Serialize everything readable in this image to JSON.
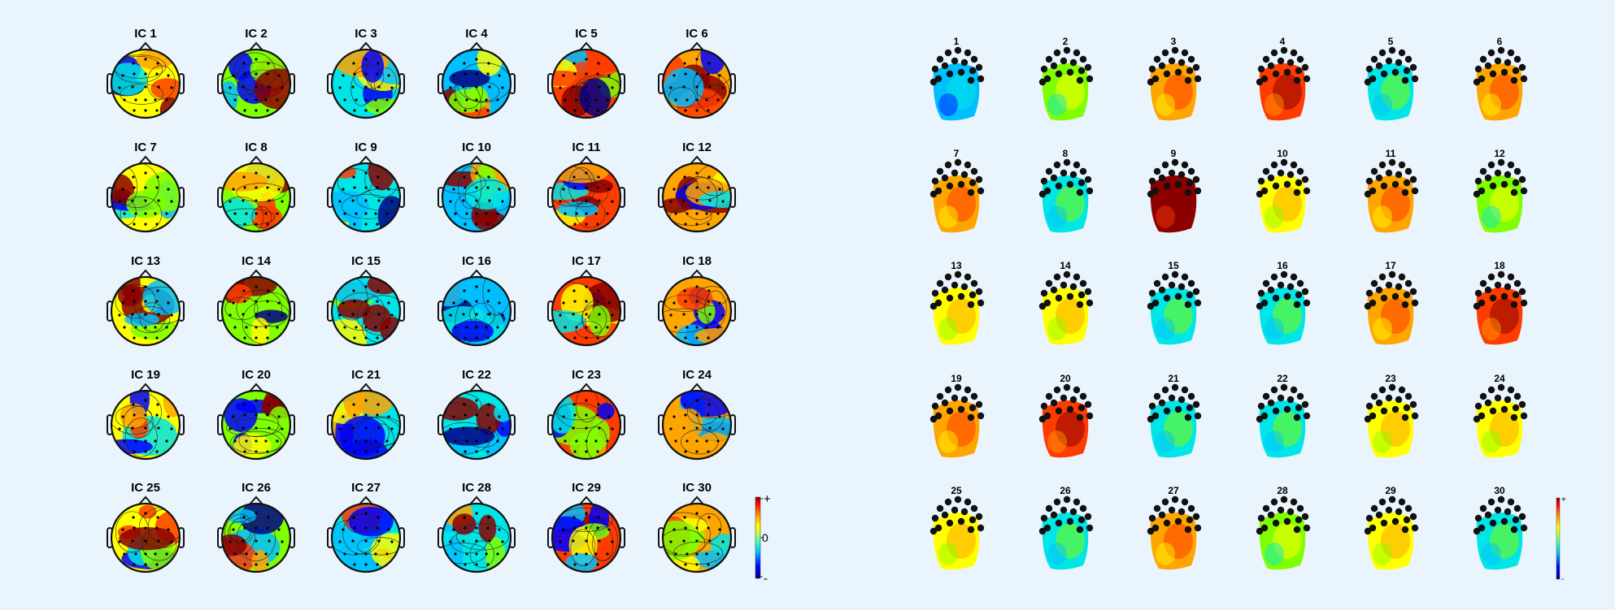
{
  "left_panel": {
    "labels": [
      "IC 1",
      "IC 2",
      "IC 3",
      "IC 4",
      "IC 5",
      "IC 6",
      "IC 7",
      "IC 8",
      "IC 9",
      "IC 10",
      "IC 11",
      "IC 12",
      "IC 13",
      "IC 14",
      "IC 15",
      "IC 16",
      "IC 17",
      "IC 18",
      "IC 19",
      "IC 20",
      "IC 21",
      "IC 22",
      "IC 23",
      "IC 24",
      "IC 25",
      "IC 26",
      "IC 27",
      "IC 28",
      "IC 29",
      "IC 30"
    ],
    "colorbar": {
      "top": "+",
      "mid": "0",
      "bottom": "-"
    }
  },
  "right_panel": {
    "labels": [
      "1",
      "2",
      "3",
      "4",
      "5",
      "6",
      "7",
      "8",
      "9",
      "10",
      "11",
      "12",
      "13",
      "14",
      "15",
      "16",
      "17",
      "18",
      "19",
      "20",
      "21",
      "22",
      "23",
      "24",
      "25",
      "26",
      "27",
      "28",
      "29",
      "30"
    ],
    "colorbar": {
      "top": "+",
      "bottom": "-"
    }
  },
  "colormap": [
    "#00008b",
    "#0000ff",
    "#00bfff",
    "#00e5e5",
    "#7fff00",
    "#ffff00",
    "#ffa500",
    "#ff3c00",
    "#8b0000"
  ]
}
